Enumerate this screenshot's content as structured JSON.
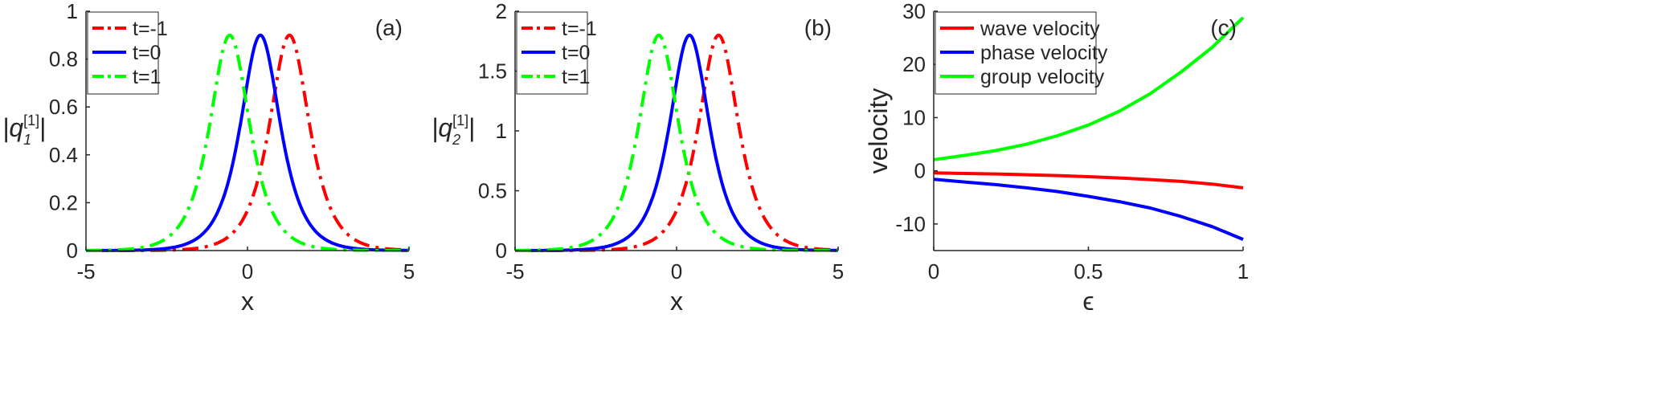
{
  "chart_data": [
    {
      "type": "line",
      "panel_label": "(a)",
      "xlabel": "x",
      "ylabel_main": "|q",
      "ylabel_sub": "1",
      "ylabel_sup": "[1]",
      "ylabel_close": "|",
      "xlim": [
        -5,
        5
      ],
      "ylim": [
        0,
        1
      ],
      "xticks": [
        -5,
        0,
        5
      ],
      "xtick_labels": [
        "-5",
        "0",
        "5"
      ],
      "yticks": [
        0,
        0.2,
        0.4,
        0.6,
        0.8,
        1
      ],
      "ytick_labels": [
        "0",
        "0.2",
        "0.4",
        "0.6",
        "0.8",
        "1"
      ],
      "grid": false,
      "legend_position": "top-left",
      "series": [
        {
          "name": "t=-1",
          "color": "#ff0000",
          "style": "dash-dot",
          "peak": 0.9,
          "center": 1.3,
          "width": 0.55
        },
        {
          "name": "t=0",
          "color": "#0000ff",
          "style": "solid",
          "peak": 0.9,
          "center": 0.4,
          "width": 0.55
        },
        {
          "name": "t=1",
          "color": "#00ff00",
          "style": "dash-dot",
          "peak": 0.9,
          "center": -0.55,
          "width": 0.55
        }
      ]
    },
    {
      "type": "line",
      "panel_label": "(b)",
      "xlabel": "x",
      "ylabel_main": "|q",
      "ylabel_sub": "2",
      "ylabel_sup": "[1]",
      "ylabel_close": "|",
      "xlim": [
        -5,
        5
      ],
      "ylim": [
        0,
        2
      ],
      "xticks": [
        -5,
        0,
        5
      ],
      "xtick_labels": [
        "-5",
        "0",
        "5"
      ],
      "yticks": [
        0,
        0.5,
        1,
        1.5,
        2
      ],
      "ytick_labels": [
        "0",
        "0.5",
        "1",
        "1.5",
        "2"
      ],
      "grid": false,
      "legend_position": "top-left",
      "series": [
        {
          "name": "t=-1",
          "color": "#ff0000",
          "style": "dash-dot",
          "peak": 1.8,
          "center": 1.3,
          "width": 0.55
        },
        {
          "name": "t=0",
          "color": "#0000ff",
          "style": "solid",
          "peak": 1.8,
          "center": 0.4,
          "width": 0.55
        },
        {
          "name": "t=1",
          "color": "#00ff00",
          "style": "dash-dot",
          "peak": 1.8,
          "center": -0.55,
          "width": 0.55
        }
      ]
    },
    {
      "type": "line",
      "panel_label": "(c)",
      "xlabel": "ϵ",
      "ylabel": "velocity",
      "xlim": [
        0,
        1
      ],
      "ylim": [
        -15,
        30
      ],
      "xticks": [
        0,
        0.5,
        1
      ],
      "xtick_labels": [
        "0",
        "0.5",
        "1"
      ],
      "yticks": [
        -10,
        0,
        10,
        20,
        30
      ],
      "ytick_labels": [
        "-10",
        "0",
        "10",
        "20",
        "30"
      ],
      "grid": false,
      "legend_position": "top-left",
      "series": [
        {
          "name": "wave velocity",
          "color": "#ff0000",
          "style": "solid",
          "x": [
            0,
            0.1,
            0.2,
            0.3,
            0.4,
            0.5,
            0.6,
            0.7,
            0.8,
            0.9,
            1.0
          ],
          "y": [
            -0.4,
            -0.5,
            -0.6,
            -0.75,
            -0.9,
            -1.1,
            -1.35,
            -1.65,
            -2.0,
            -2.5,
            -3.2
          ]
        },
        {
          "name": "phase velocity",
          "color": "#0000ff",
          "style": "solid",
          "x": [
            0,
            0.1,
            0.2,
            0.3,
            0.4,
            0.5,
            0.6,
            0.7,
            0.8,
            0.9,
            1.0
          ],
          "y": [
            -1.6,
            -2.1,
            -2.6,
            -3.2,
            -3.9,
            -4.8,
            -5.8,
            -7.0,
            -8.6,
            -10.5,
            -12.9
          ]
        },
        {
          "name": "group velocity",
          "color": "#00ff00",
          "style": "solid",
          "x": [
            0,
            0.1,
            0.2,
            0.3,
            0.4,
            0.5,
            0.6,
            0.7,
            0.8,
            0.9,
            1.0
          ],
          "y": [
            2.1,
            2.9,
            3.8,
            5.0,
            6.6,
            8.6,
            11.2,
            14.5,
            18.6,
            23.2,
            28.8
          ]
        }
      ]
    }
  ]
}
